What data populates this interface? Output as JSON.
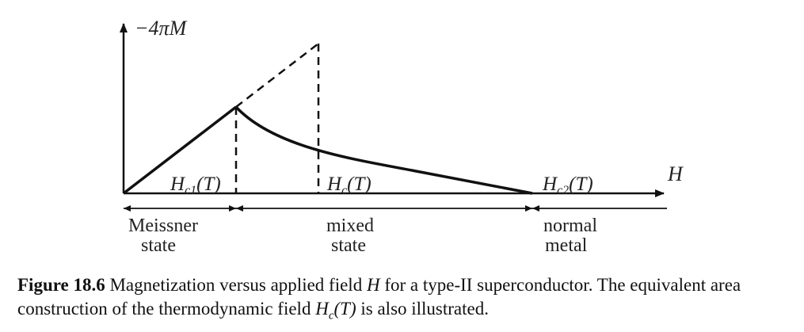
{
  "figure": {
    "y_axis_label": "−4πM",
    "x_axis_label": "H",
    "field_labels": {
      "hc1": {
        "base": "H",
        "sub": "c1",
        "arg": "(T)"
      },
      "hc": {
        "base": "H",
        "sub": "c",
        "arg": "(T)"
      },
      "hc2": {
        "base": "H",
        "sub": "c2",
        "arg": "(T)"
      }
    },
    "regions": [
      {
        "line1": "Meissner",
        "line2": "state"
      },
      {
        "line1": "mixed",
        "line2": "state"
      },
      {
        "line1": "normal",
        "line2": "metal"
      }
    ]
  },
  "caption": {
    "label": "Figure 18.6",
    "text_1": " Magnetization versus applied field ",
    "var_1": "H",
    "text_2": " for a type-II superconductor. The equivalent area construction of the thermodynamic field ",
    "var_2_base": "H",
    "var_2_sub": "c",
    "var_2_arg": "(T)",
    "text_3": " is also illustrated."
  }
}
